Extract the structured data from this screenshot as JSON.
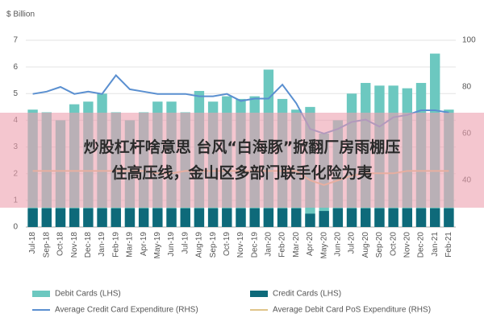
{
  "chart_data": {
    "type": "bar-line",
    "title": "$ Billion",
    "categories": [
      "Jul-18",
      "Sep-18",
      "Oct-18",
      "Nov-18",
      "Dec-18",
      "Jan-19",
      "Feb-19",
      "Mar-19",
      "Apr-19",
      "May-19",
      "Jun-19",
      "Jul-19",
      "Aug-19",
      "Sep-19",
      "Oct-19",
      "Nov-19",
      "Dec-19",
      "Jan-20",
      "Feb-20",
      "Mar-20",
      "Apr-20",
      "May-20",
      "Jun-20",
      "Jul-20",
      "Aug-20",
      "Sep-20",
      "Oct-20",
      "Nov-20",
      "Dec-20",
      "Jan-21",
      "Feb-21"
    ],
    "series": [
      {
        "name": "Debit Cards (LHS)",
        "color": "#6cc8c0",
        "kind": "bar",
        "values": [
          4.4,
          4.3,
          4.0,
          4.6,
          4.7,
          5.0,
          4.3,
          4.0,
          4.3,
          4.7,
          4.7,
          4.3,
          5.1,
          4.7,
          4.9,
          4.8,
          4.9,
          5.9,
          4.8,
          4.4,
          4.5,
          3.5,
          4.0,
          5.0,
          5.4,
          5.3,
          5.3,
          5.2,
          5.4,
          6.5,
          4.4
        ]
      },
      {
        "name": "Credit Cards (LHS)",
        "color": "#0e6a7a",
        "kind": "bar",
        "values": [
          0.7,
          0.7,
          0.7,
          0.7,
          0.7,
          0.7,
          0.7,
          0.7,
          0.7,
          0.7,
          0.7,
          0.7,
          0.7,
          0.7,
          0.7,
          0.7,
          0.7,
          0.7,
          0.7,
          0.7,
          0.5,
          0.6,
          0.7,
          0.7,
          0.7,
          0.7,
          0.7,
          0.7,
          0.7,
          0.7,
          0.7
        ]
      },
      {
        "name": "Average Credit Card Expenditure (RHS)",
        "color": "#5a8fd0",
        "kind": "line",
        "axis": "y2",
        "values": [
          77,
          78,
          80,
          77,
          78,
          77,
          85,
          79,
          78,
          77,
          77,
          77,
          76,
          76,
          77,
          74,
          75,
          75,
          81,
          73,
          62,
          60,
          62,
          65,
          66,
          63,
          67,
          68,
          70,
          70,
          69
        ]
      },
      {
        "name": "Average Debit Card PoS Expenditure (RHS)",
        "color": "#e0c48a",
        "kind": "line",
        "axis": "y2",
        "values": [
          44,
          44,
          44,
          44,
          44,
          44,
          44,
          44,
          44,
          43,
          43,
          44,
          44,
          44,
          44,
          44,
          44,
          44,
          44,
          44,
          40,
          38,
          40,
          42,
          43,
          43,
          43,
          44,
          44,
          44,
          44
        ]
      }
    ],
    "ylim": [
      0,
      7
    ],
    "yticks": [
      0,
      1,
      2,
      3,
      4,
      5,
      6,
      7
    ],
    "y2lim": [
      20,
      100
    ],
    "y2ticks": [
      40,
      60,
      80,
      100
    ],
    "grid": true
  },
  "banner": {
    "lines": [
      "炒股杠杆啥意思 台风“白海豚”掀翻厂房雨棚压",
      "住高压线，金山区多部门联手化险为夷"
    ]
  }
}
